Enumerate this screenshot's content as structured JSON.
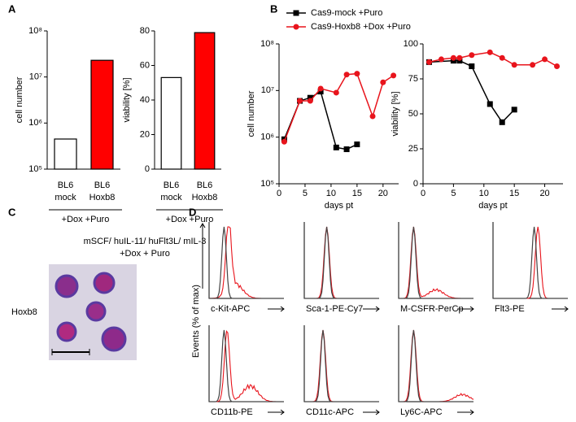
{
  "panels": [
    "A",
    "B",
    "C",
    "D"
  ],
  "chart_data": [
    {
      "type": "bar",
      "ylabel": "cell number",
      "categories": [
        "BL6 mock",
        "BL6 Hoxb8"
      ],
      "values": [
        450000,
        23000000
      ],
      "colors": [
        "#ffffff",
        "#ff0000"
      ],
      "edgecolor": "#000000",
      "log_y": true,
      "ylim": [
        100000,
        100000000
      ],
      "yticks": [
        {
          "value": 100000,
          "label": "10⁵"
        },
        {
          "value": 1000000,
          "label": "10⁶"
        },
        {
          "value": 10000000,
          "label": "10⁷"
        },
        {
          "value": 100000000,
          "label": "10⁸"
        }
      ],
      "group_label": "+Dox +Puro"
    },
    {
      "type": "bar",
      "ylabel": "viability [%]",
      "categories": [
        "BL6 mock",
        "BL6 Hoxb8"
      ],
      "values": [
        53,
        79
      ],
      "colors": [
        "#ffffff",
        "#ff0000"
      ],
      "edgecolor": "#000000",
      "ylim": [
        0,
        80
      ],
      "yticks": [
        0,
        20,
        40,
        60,
        80
      ],
      "group_label": "+Dox +Puro"
    },
    {
      "type": "line",
      "ylabel": "cell number",
      "xlabel": "days pt",
      "log_y": true,
      "legend": "top",
      "xlim": [
        0,
        23
      ],
      "xticks": [
        0,
        5,
        10,
        15,
        20
      ],
      "ylim": [
        100000,
        100000000
      ],
      "yticks": [
        {
          "value": 100000,
          "label": "10⁵"
        },
        {
          "value": 1000000,
          "label": "10⁶"
        },
        {
          "value": 10000000,
          "label": "10⁷"
        },
        {
          "value": 100000000,
          "label": "10⁸"
        }
      ],
      "series": [
        {
          "name": "Cas9-mock +Puro",
          "color": "#000000",
          "marker": "square",
          "x": [
            1,
            4,
            6,
            8,
            11,
            13,
            15
          ],
          "values": [
            900000,
            6000000,
            7000000,
            9500000,
            600000,
            550000,
            700000
          ]
        },
        {
          "name": "Cas9-Hoxb8 +Dox +Puro",
          "color": "#e8141c",
          "marker": "circle",
          "x": [
            1,
            4,
            6,
            8,
            11,
            13,
            15,
            18,
            20,
            22
          ],
          "values": [
            800000,
            6000000,
            6000000,
            11000000,
            9000000,
            22000000,
            23000000,
            2800000,
            15000000,
            21000000
          ]
        }
      ]
    },
    {
      "type": "line",
      "ylabel": "viability [%]",
      "xlabel": "days pt",
      "xlim": [
        0,
        23
      ],
      "xticks": [
        0,
        5,
        10,
        15,
        20
      ],
      "ylim": [
        0,
        100
      ],
      "yticks": [
        0,
        25,
        50,
        75,
        100
      ],
      "series": [
        {
          "name": "Cas9-mock +Puro",
          "color": "#000000",
          "marker": "square",
          "x": [
            1,
            5,
            6,
            8,
            11,
            13,
            15
          ],
          "values": [
            87,
            88,
            88,
            84,
            57,
            44,
            53
          ]
        },
        {
          "name": "Cas9-Hoxb8 +Dox +Puro",
          "color": "#e8141c",
          "marker": "circle",
          "x": [
            1,
            3,
            5,
            6,
            8,
            11,
            13,
            15,
            18,
            20,
            22
          ],
          "values": [
            87,
            89,
            90,
            90,
            92,
            94,
            90,
            85,
            85,
            89,
            84
          ]
        }
      ]
    }
  ],
  "panel_c": {
    "condition": "mSCF/ huIL-11/ huFlt3L/ mIL-3",
    "treatment": "+Dox + Puro",
    "label": "Hoxb8"
  },
  "panel_d": {
    "ylabel": "Events (% of max)",
    "markers": [
      "c-Kit-APC",
      "Sca-1-PE-Cy7",
      "M-CSFR-PerCp",
      "Flt3-PE",
      "CD11b-PE",
      "CD11c-APC",
      "Ly6C-APC"
    ]
  }
}
